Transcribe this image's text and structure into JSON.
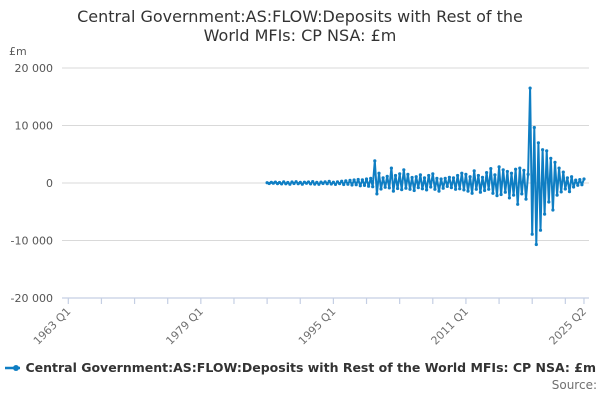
{
  "title": {
    "lines": [
      "Central Government:AS:FLOW:Deposits with Rest of the",
      "World MFIs: CP NSA: £m"
    ]
  },
  "colors": {
    "line": "#0f7ec3",
    "grid": "#d9d9d9",
    "axis": "#c5cfe4",
    "title_text": "#333333",
    "y_tick_text": "#555555",
    "x_tick_text": "#707070",
    "source_text": "#707070"
  },
  "y_axis": {
    "unit_label": "£m",
    "tick_labels": [
      "20 000",
      "10 000",
      "0",
      "-10 000",
      "-20 000"
    ],
    "tick_values": [
      20000,
      10000,
      0,
      -10000,
      -20000
    ]
  },
  "x_axis": {
    "minor_tick_start_year": 1963,
    "minor_tick_end_year": 2023,
    "minor_tick_interval_years": 4,
    "labels": [
      {
        "text": "1963 Q1",
        "year": 1963.0
      },
      {
        "text": "1979 Q1",
        "year": 1979.0
      },
      {
        "text": "1995 Q1",
        "year": 1995.0
      },
      {
        "text": "2011 Q1",
        "year": 2011.0
      },
      {
        "text": "2025 Q2",
        "year": 2025.25
      }
    ]
  },
  "legend": {
    "label": "Central Government:AS:FLOW:Deposits with Rest of the World MFIs: CP NSA: £m"
  },
  "source_label": "Source:",
  "chart_data": {
    "type": "line",
    "title": "Central Government:AS:FLOW:Deposits with Rest of the World MFIs: CP NSA: £m",
    "ylabel": "£m",
    "ylim": [
      -20000,
      20000
    ],
    "x_axis_range_years": [
      1963.0,
      2025.5
    ],
    "grid": "horizontal-only",
    "legend_position": "bottom-left",
    "frequency": "quarterly",
    "series_start": "1987 Q1",
    "series_end": "2025 Q2",
    "series_start_year": 1987.0,
    "series": [
      {
        "name": "Central Government:AS:FLOW:Deposits with Rest of the World MFIs: CP NSA: £m",
        "values": [
          60,
          -90,
          120,
          -40,
          150,
          -110,
          80,
          -160,
          200,
          -140,
          90,
          -200,
          170,
          -80,
          230,
          -120,
          100,
          -210,
          140,
          -60,
          180,
          -150,
          250,
          -190,
          120,
          -230,
          160,
          -90,
          210,
          -130,
          270,
          -180,
          140,
          -240,
          190,
          -110,
          320,
          -260,
          380,
          -210,
          450,
          -340,
          520,
          -290,
          610,
          -480,
          560,
          -420,
          700,
          -550,
          820,
          -640,
          3850,
          -1900,
          1700,
          -1050,
          900,
          -750,
          1150,
          -850,
          2600,
          -1400,
          1300,
          -950,
          1600,
          -1150,
          2300,
          -900,
          1500,
          -1100,
          950,
          -1300,
          1100,
          -800,
          1400,
          -1000,
          900,
          -1200,
          1300,
          -700,
          1600,
          -1100,
          800,
          -1400,
          700,
          -900,
          800,
          -600,
          1000,
          -800,
          900,
          -1100,
          1300,
          -1000,
          1700,
          -1200,
          1500,
          -1400,
          1100,
          -1800,
          2100,
          -1100,
          1300,
          -1600,
          1000,
          -1300,
          1800,
          -1100,
          2500,
          -1800,
          1400,
          -2200,
          2800,
          -2000,
          2300,
          -1600,
          2000,
          -2600,
          1700,
          -2100,
          2400,
          -3700,
          2600,
          -1900,
          2200,
          -2800,
          1500,
          16500,
          -8900,
          9650,
          -10700,
          7000,
          -8200,
          5800,
          -5400,
          5600,
          -3300,
          4300,
          -4700,
          3600,
          -2100,
          2600,
          -1550,
          1900,
          -1050,
          900,
          -1500,
          1100,
          -700,
          500,
          -400,
          600,
          -300,
          700
        ]
      }
    ]
  }
}
